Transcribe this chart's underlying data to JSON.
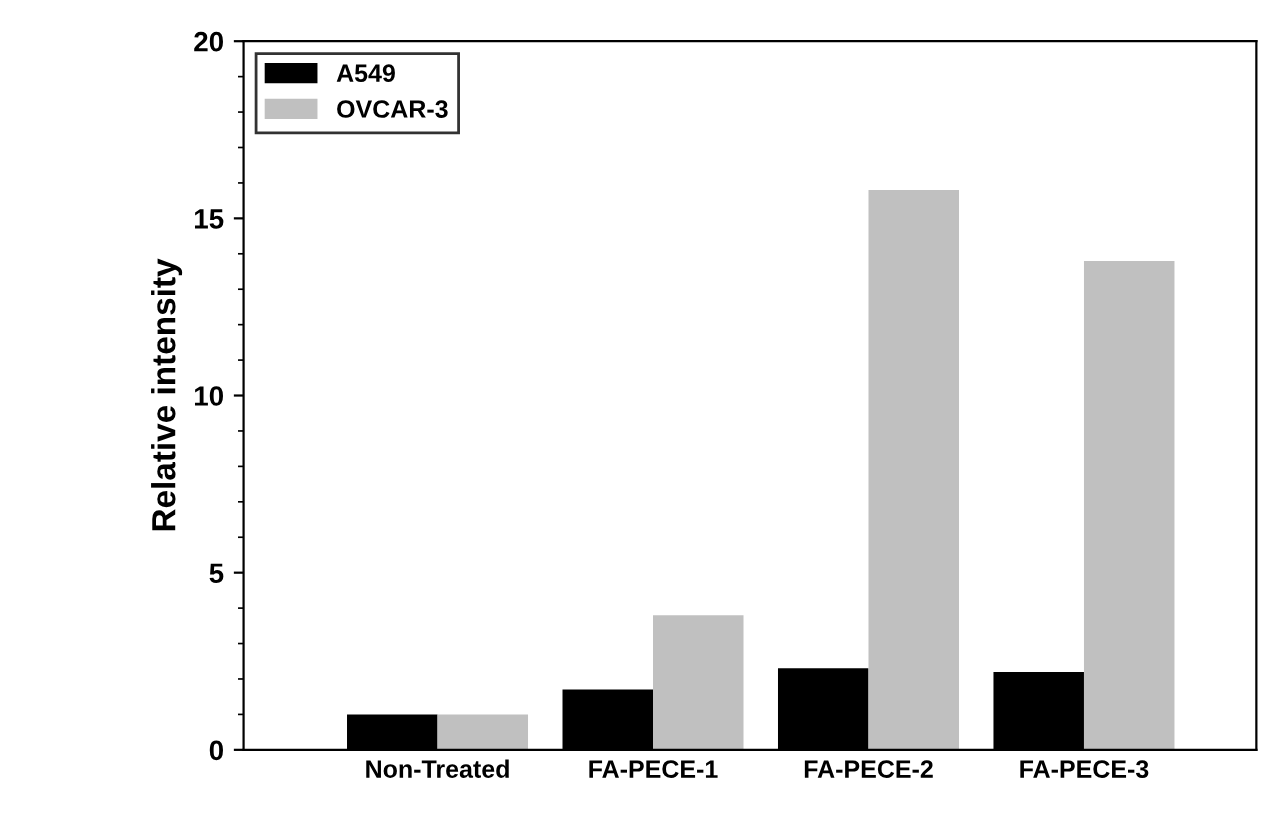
{
  "chart_data": {
    "type": "bar",
    "ylabel": "Relative intensity",
    "categories": [
      "Non-Treated",
      "FA-PECE-1",
      "FA-PECE-2",
      "FA-PECE-3"
    ],
    "series": [
      {
        "name": "A549",
        "color": "#000000",
        "values": [
          1.0,
          1.7,
          2.3,
          2.2
        ]
      },
      {
        "name": "OVCAR-3",
        "color": "#c0c0c0",
        "values": [
          1.0,
          3.8,
          15.8,
          13.8
        ]
      }
    ],
    "ylim": [
      0,
      20
    ],
    "yticks": [
      0,
      5,
      10,
      15,
      20
    ],
    "grid": false,
    "legend": "top left"
  }
}
